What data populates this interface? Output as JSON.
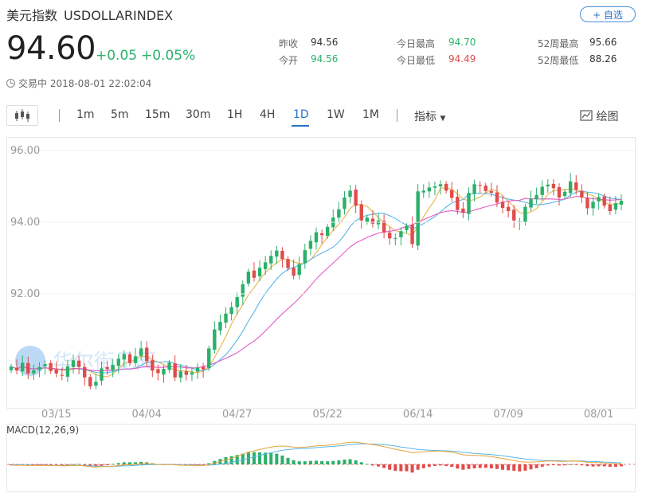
{
  "header": {
    "name": "美元指数",
    "symbol": "USDOLLARINDEX",
    "add_label": "+ 自选",
    "price": "94.60",
    "change": "+0.05",
    "change_pct": "+0.05%",
    "status": "交易中 2018-08-01 22:02:04"
  },
  "stats": {
    "prev_close_label": "昨收",
    "prev_close": "94.56",
    "open_label": "今开",
    "open": "94.56",
    "high_label": "今日最高",
    "high": "94.70",
    "low_label": "今日最低",
    "low": "94.49",
    "w52_high_label": "52周最高",
    "w52_high": "95.66",
    "w52_low_label": "52周最低",
    "w52_low": "88.26"
  },
  "toolbar": {
    "tabs": [
      "1m",
      "5m",
      "15m",
      "30m",
      "1H",
      "4H",
      "1D",
      "1W",
      "1M"
    ],
    "active_tab": "1D",
    "indicator_label": "指标",
    "draw_label": "绘图"
  },
  "colors": {
    "up": "#2bb06a",
    "down": "#e04b4b",
    "accent": "#2a73c9",
    "ma_short": "#e8b548",
    "ma_mid": "#58b6e8",
    "ma_long": "#e65bc4",
    "macd_signal": "#e8a33c"
  },
  "icons": {
    "candle_button": "candlestick-icon",
    "draw": "draw-icon",
    "indicator": "chevron-down-icon"
  },
  "watermark": "华尔街见闻",
  "chart_data": {
    "type": "candlestick",
    "x_tick_labels": [
      "03/15",
      "04/04",
      "04/27",
      "05/22",
      "06/14",
      "07/09",
      "08/01"
    ],
    "x_tick_index": [
      8,
      24,
      40,
      56,
      72,
      88,
      104
    ],
    "y_tick_labels": [
      "96.00",
      "94.00",
      "92.00"
    ],
    "y_tick_values": [
      96,
      94,
      92
    ],
    "ylim": [
      89.0,
      96.2
    ],
    "ma_periods": [
      5,
      10,
      20
    ],
    "macd_label": "MACD(12,26,9)",
    "close": [
      89.97,
      89.86,
      90.08,
      89.78,
      89.87,
      89.96,
      90.04,
      89.85,
      89.78,
      89.72,
      89.98,
      90.15,
      89.96,
      89.67,
      89.42,
      89.55,
      89.92,
      89.9,
      90.02,
      90.19,
      90.32,
      90.07,
      90.26,
      90.48,
      90.12,
      89.86,
      89.79,
      89.91,
      90.08,
      89.67,
      89.84,
      89.74,
      89.81,
      89.94,
      89.89,
      90.48,
      91.01,
      91.22,
      91.45,
      91.63,
      91.91,
      92.27,
      92.62,
      92.45,
      92.73,
      92.88,
      93.06,
      93.21,
      92.97,
      92.72,
      92.51,
      92.83,
      93.22,
      93.48,
      93.72,
      93.64,
      93.87,
      94.13,
      94.36,
      94.69,
      94.88,
      94.46,
      94.05,
      94.13,
      93.96,
      94.05,
      93.71,
      93.55,
      93.56,
      93.75,
      93.89,
      93.39,
      94.86,
      94.88,
      94.97,
      95.0,
      95.06,
      94.88,
      94.68,
      94.34,
      94.27,
      94.82,
      95.06,
      95.03,
      94.87,
      94.82,
      94.55,
      94.4,
      94.31,
      94.05,
      94.02,
      94.43,
      94.65,
      94.76,
      94.99,
      95.05,
      94.95,
      94.69,
      94.85,
      95.14,
      94.9,
      94.69,
      94.39,
      94.57,
      94.7,
      94.46,
      94.31,
      94.53,
      94.6
    ],
    "macd": {
      "dif": [
        -0.04,
        -0.05,
        -0.04,
        -0.06,
        -0.06,
        -0.06,
        -0.05,
        -0.06,
        -0.06,
        -0.08,
        -0.07,
        -0.05,
        -0.05,
        -0.08,
        -0.12,
        -0.14,
        -0.12,
        -0.11,
        -0.09,
        -0.06,
        -0.03,
        -0.02,
        0,
        0.04,
        0.04,
        0.02,
        0,
        -0.01,
        0,
        -0.03,
        -0.04,
        -0.05,
        -0.06,
        -0.06,
        -0.06,
        -0.01,
        0.07,
        0.15,
        0.23,
        0.32,
        0.42,
        0.53,
        0.64,
        0.71,
        0.78,
        0.84,
        0.9,
        0.95,
        0.96,
        0.94,
        0.9,
        0.89,
        0.9,
        0.93,
        0.97,
        0.98,
        1,
        1.03,
        1.07,
        1.12,
        1.16,
        1.16,
        1.12,
        1.08,
        1.03,
        0.99,
        0.93,
        0.86,
        0.79,
        0.73,
        0.69,
        0.6,
        0.64,
        0.66,
        0.68,
        0.69,
        0.69,
        0.67,
        0.63,
        0.57,
        0.5,
        0.48,
        0.47,
        0.46,
        0.44,
        0.41,
        0.36,
        0.31,
        0.26,
        0.2,
        0.14,
        0.12,
        0.12,
        0.13,
        0.15,
        0.17,
        0.18,
        0.16,
        0.16,
        0.18,
        0.17,
        0.15,
        0.11,
        0.09,
        0.09,
        0.07,
        0.04,
        0.03,
        0.03
      ],
      "dea": [
        -0.01,
        -0.02,
        -0.02,
        -0.03,
        -0.04,
        -0.04,
        -0.04,
        -0.05,
        -0.05,
        -0.06,
        -0.06,
        -0.06,
        -0.06,
        -0.06,
        -0.07,
        -0.09,
        -0.09,
        -0.1,
        -0.1,
        -0.09,
        -0.08,
        -0.07,
        -0.05,
        -0.03,
        -0.02,
        -0.01,
        -0.01,
        -0.01,
        -0.01,
        -0.01,
        -0.02,
        -0.03,
        -0.03,
        -0.04,
        -0.04,
        -0.04,
        -0.02,
        0.01,
        0.05,
        0.11,
        0.17,
        0.24,
        0.32,
        0.39,
        0.47,
        0.54,
        0.61,
        0.68,
        0.74,
        0.77,
        0.8,
        0.82,
        0.83,
        0.85,
        0.88,
        0.9,
        0.92,
        0.94,
        0.97,
        1,
        1.03,
        1.05,
        1.07,
        1.07,
        1.06,
        1.05,
        1.03,
        1,
        0.96,
        0.91,
        0.87,
        0.82,
        0.78,
        0.76,
        0.74,
        0.73,
        0.72,
        0.71,
        0.69,
        0.67,
        0.63,
        0.6,
        0.57,
        0.55,
        0.53,
        0.51,
        0.48,
        0.45,
        0.41,
        0.37,
        0.32,
        0.28,
        0.25,
        0.23,
        0.21,
        0.2,
        0.2,
        0.19,
        0.18,
        0.18,
        0.18,
        0.18,
        0.16,
        0.15,
        0.14,
        0.12,
        0.11,
        0.09,
        0.08
      ],
      "hist": [
        -0.05,
        -0.06,
        -0.03,
        -0.06,
        -0.06,
        -0.04,
        -0.02,
        -0.04,
        -0.03,
        -0.04,
        -0.02,
        0.01,
        0.02,
        -0.04,
        -0.1,
        -0.11,
        -0.07,
        -0.04,
        0.02,
        0.07,
        0.11,
        0.11,
        0.11,
        0.13,
        0.11,
        0.06,
        0.02,
        0,
        0.01,
        -0.04,
        -0.05,
        -0.05,
        -0.05,
        -0.05,
        -0.04,
        0.06,
        0.18,
        0.28,
        0.38,
        0.43,
        0.49,
        0.56,
        0.63,
        0.64,
        0.63,
        0.61,
        0.59,
        0.56,
        0.46,
        0.34,
        0.22,
        0.16,
        0.16,
        0.18,
        0.19,
        0.17,
        0.16,
        0.18,
        0.21,
        0.25,
        0.27,
        0.21,
        0.11,
        0.02,
        -0.06,
        -0.11,
        -0.19,
        -0.28,
        -0.34,
        -0.36,
        -0.36,
        -0.43,
        -0.28,
        -0.2,
        -0.13,
        -0.08,
        -0.06,
        -0.09,
        -0.13,
        -0.22,
        -0.28,
        -0.24,
        -0.21,
        -0.19,
        -0.18,
        -0.21,
        -0.24,
        -0.28,
        -0.31,
        -0.34,
        -0.37,
        -0.33,
        -0.26,
        -0.2,
        -0.12,
        -0.06,
        -0.04,
        -0.06,
        -0.05,
        0,
        -0.01,
        -0.05,
        -0.09,
        -0.11,
        -0.1,
        -0.1,
        -0.13,
        -0.13,
        -0.1
      ]
    }
  }
}
